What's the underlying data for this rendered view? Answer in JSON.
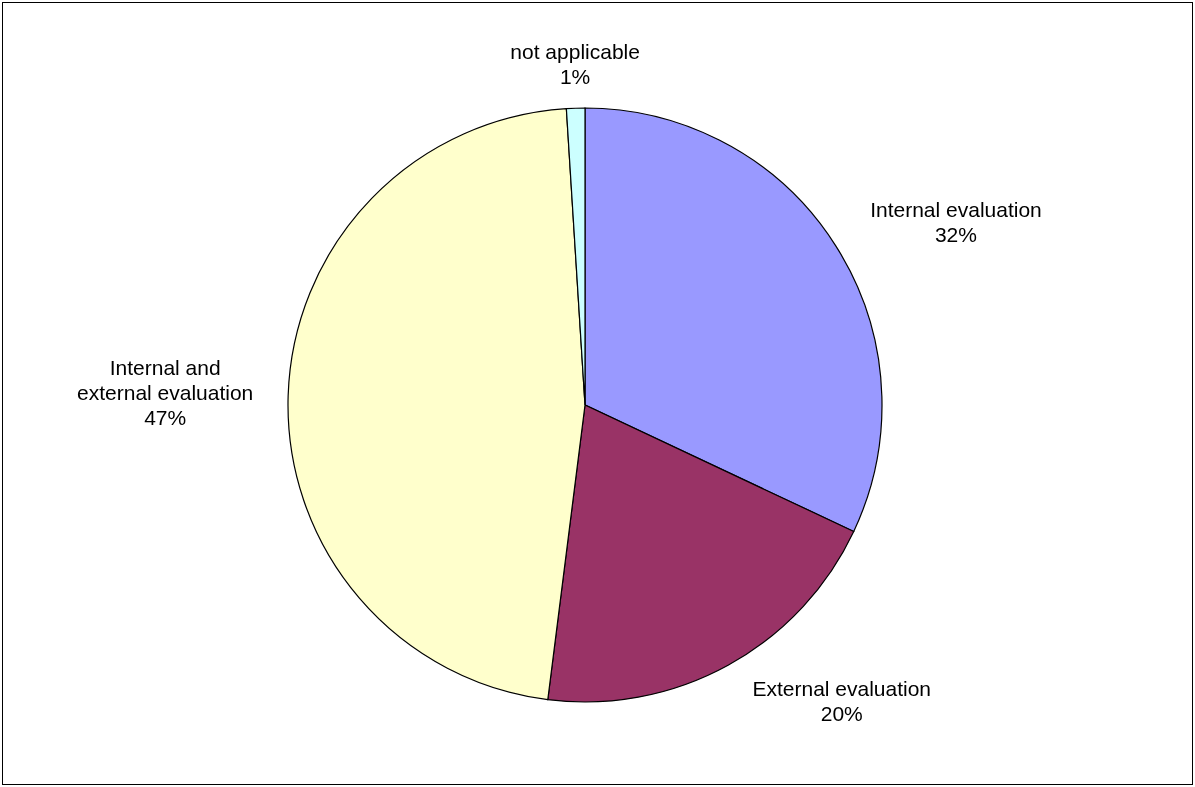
{
  "chart_data": {
    "type": "pie",
    "categories": [
      "Internal evaluation",
      "External evaluation",
      "Internal and external evaluation",
      "not applicable"
    ],
    "values": [
      32,
      20,
      47,
      1
    ],
    "value_labels": [
      "32%",
      "20%",
      "47%",
      "1%"
    ],
    "colors": [
      "#9999ff",
      "#993366",
      "#ffffcc",
      "#ccffff"
    ]
  }
}
